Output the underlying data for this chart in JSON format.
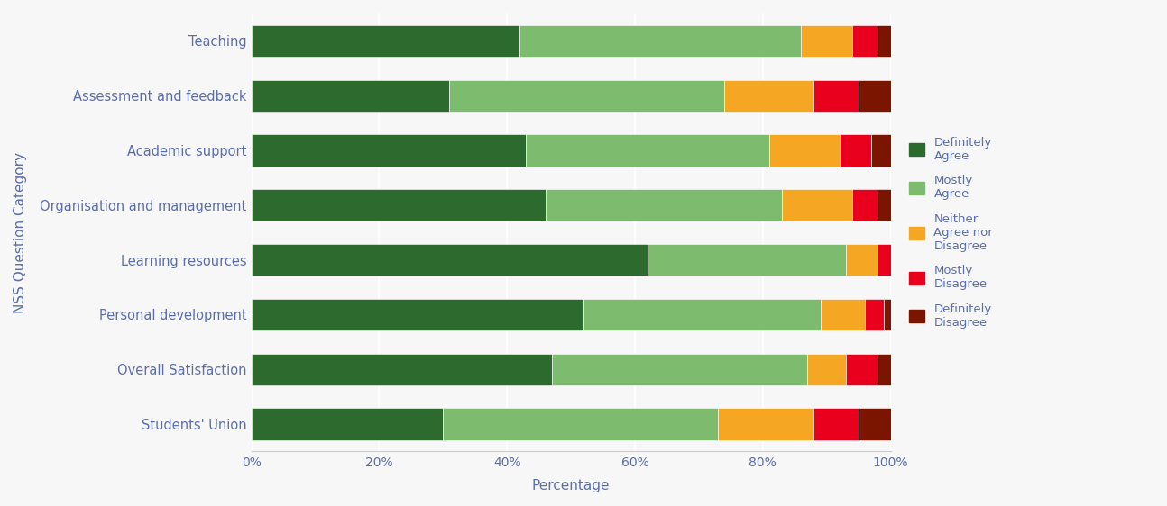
{
  "categories": [
    "Students' Union",
    "Overall Satisfaction",
    "Personal development",
    "Learning resources",
    "Organisation and management",
    "Academic support",
    "Assessment and feedback",
    "Teaching"
  ],
  "series": {
    "Definitely Agree": [
      30,
      47,
      52,
      62,
      46,
      43,
      31,
      42
    ],
    "Mostly Agree": [
      43,
      40,
      37,
      31,
      37,
      38,
      43,
      44
    ],
    "Neither Agree nor Disagree": [
      15,
      6,
      7,
      5,
      11,
      11,
      14,
      8
    ],
    "Mostly Disagree": [
      7,
      5,
      3,
      2,
      4,
      5,
      7,
      4
    ],
    "Definitely Disagree": [
      5,
      2,
      1,
      0,
      2,
      3,
      5,
      2
    ]
  },
  "colors": {
    "Definitely Agree": "#2d6a2d",
    "Mostly Agree": "#7dbb6e",
    "Neither Agree nor Disagree": "#f5a623",
    "Mostly Disagree": "#e8001c",
    "Definitely Disagree": "#7b1500"
  },
  "xlabel": "Percentage",
  "ylabel": "NSS Question Category",
  "background_color": "#f7f7f7",
  "legend_labels": [
    "Definitely\nAgree",
    "Mostly\nAgree",
    "Neither\nAgree nor\nDisagree",
    "Mostly\nDisagree",
    "Definitely\nDisagree"
  ],
  "legend_keys": [
    "Definitely Agree",
    "Mostly Agree",
    "Neither Agree nor Disagree",
    "Mostly Disagree",
    "Definitely Disagree"
  ],
  "axis_label_color": "#5b6fad",
  "tick_color": "#5b6fad",
  "bar_height": 0.58
}
